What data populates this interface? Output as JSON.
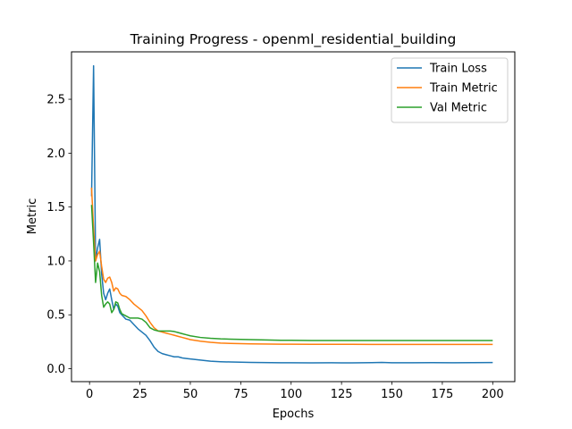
{
  "chart_data": {
    "type": "line",
    "title": "Training Progress - openml_residential_building",
    "xlabel": "Epochs",
    "ylabel": "Metric",
    "xlim": [
      -8.95,
      210.95
    ],
    "ylim": [
      -0.12,
      2.94
    ],
    "xticks": [
      0,
      25,
      50,
      75,
      100,
      125,
      150,
      175,
      200
    ],
    "xtick_labels": [
      "0",
      "25",
      "50",
      "75",
      "100",
      "125",
      "150",
      "175",
      "200"
    ],
    "yticks": [
      0.0,
      0.5,
      1.0,
      1.5,
      2.0,
      2.5
    ],
    "ytick_labels": [
      "0.0",
      "0.5",
      "1.0",
      "1.5",
      "2.0",
      "2.5"
    ],
    "grid": false,
    "legend_position": "top-right",
    "series": [
      {
        "name": "Train Loss",
        "color": "#1f77b4",
        "x": [
          1,
          2,
          3,
          4,
          5,
          6,
          7,
          8,
          9,
          10,
          11,
          12,
          13,
          14,
          15,
          16,
          18,
          20,
          22,
          24,
          26,
          28,
          30,
          32,
          34,
          36,
          38,
          40,
          42,
          44,
          46,
          48,
          50,
          55,
          60,
          65,
          70,
          75,
          80,
          85,
          90,
          95,
          100,
          110,
          120,
          130,
          140,
          145,
          150,
          160,
          170,
          180,
          190,
          200
        ],
        "y": [
          1.6,
          2.81,
          1.0,
          1.12,
          1.2,
          0.88,
          0.7,
          0.64,
          0.7,
          0.74,
          0.64,
          0.55,
          0.6,
          0.58,
          0.52,
          0.5,
          0.46,
          0.45,
          0.41,
          0.37,
          0.34,
          0.31,
          0.26,
          0.2,
          0.16,
          0.14,
          0.13,
          0.12,
          0.11,
          0.11,
          0.1,
          0.095,
          0.09,
          0.08,
          0.07,
          0.065,
          0.062,
          0.06,
          0.058,
          0.057,
          0.056,
          0.055,
          0.055,
          0.054,
          0.055,
          0.054,
          0.056,
          0.058,
          0.055,
          0.055,
          0.056,
          0.055,
          0.056,
          0.057
        ]
      },
      {
        "name": "Train Metric",
        "color": "#ff7f0e",
        "x": [
          1,
          2,
          3,
          4,
          5,
          6,
          7,
          8,
          9,
          10,
          11,
          12,
          13,
          14,
          15,
          16,
          18,
          20,
          22,
          24,
          26,
          28,
          30,
          32,
          34,
          36,
          38,
          40,
          42,
          44,
          46,
          48,
          50,
          55,
          60,
          65,
          70,
          75,
          80,
          85,
          90,
          95,
          100,
          110,
          120,
          130,
          140,
          150,
          160,
          170,
          180,
          190,
          200
        ],
        "y": [
          1.68,
          1.3,
          1.0,
          1.06,
          1.09,
          0.95,
          0.83,
          0.8,
          0.84,
          0.85,
          0.8,
          0.72,
          0.75,
          0.74,
          0.7,
          0.68,
          0.67,
          0.64,
          0.6,
          0.57,
          0.54,
          0.49,
          0.43,
          0.38,
          0.35,
          0.34,
          0.33,
          0.32,
          0.31,
          0.3,
          0.29,
          0.28,
          0.27,
          0.255,
          0.245,
          0.238,
          0.234,
          0.232,
          0.23,
          0.229,
          0.228,
          0.227,
          0.227,
          0.226,
          0.226,
          0.226,
          0.225,
          0.225,
          0.225,
          0.225,
          0.225,
          0.225,
          0.225
        ]
      },
      {
        "name": "Val Metric",
        "color": "#2ca02c",
        "x": [
          1,
          2,
          3,
          4,
          5,
          6,
          7,
          8,
          9,
          10,
          11,
          12,
          13,
          14,
          15,
          16,
          18,
          20,
          22,
          24,
          26,
          28,
          30,
          32,
          34,
          36,
          38,
          40,
          42,
          44,
          46,
          48,
          50,
          55,
          60,
          65,
          70,
          75,
          80,
          85,
          90,
          95,
          100,
          110,
          120,
          130,
          140,
          150,
          160,
          170,
          180,
          190,
          200
        ],
        "y": [
          1.52,
          1.17,
          0.8,
          0.98,
          0.9,
          0.68,
          0.57,
          0.6,
          0.62,
          0.6,
          0.52,
          0.55,
          0.62,
          0.61,
          0.55,
          0.51,
          0.49,
          0.47,
          0.47,
          0.47,
          0.46,
          0.43,
          0.38,
          0.36,
          0.35,
          0.35,
          0.35,
          0.35,
          0.345,
          0.335,
          0.325,
          0.315,
          0.305,
          0.29,
          0.282,
          0.277,
          0.274,
          0.272,
          0.27,
          0.268,
          0.266,
          0.264,
          0.263,
          0.262,
          0.262,
          0.262,
          0.262,
          0.262,
          0.262,
          0.262,
          0.262,
          0.262,
          0.262
        ]
      }
    ]
  }
}
